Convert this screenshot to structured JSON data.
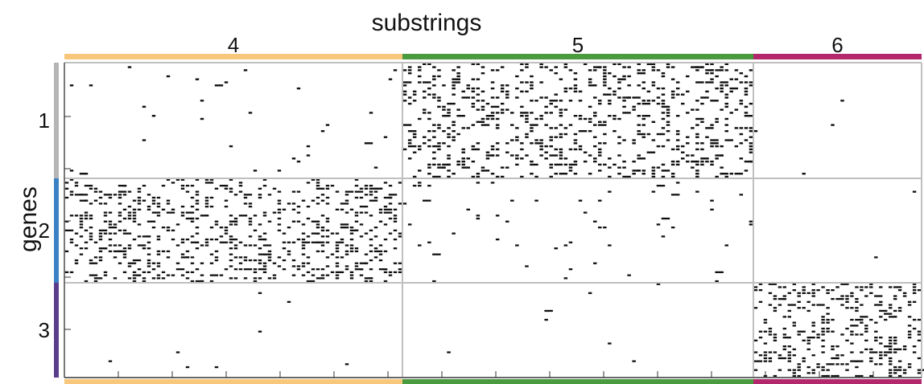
{
  "chart_data": {
    "type": "heatmap",
    "title": "",
    "xlabel": "substrings",
    "ylabel": "genes",
    "grid": true,
    "colors": {
      "col_group_4": "#f9c77b",
      "col_group_5": "#4a9a3f",
      "col_group_6": "#b3276d",
      "row_group_1": "#b5b5b5",
      "row_group_2": "#3b82c4",
      "row_group_3": "#5a3d8a",
      "marks": "#111111",
      "grid": "#bfbfbf"
    },
    "column_groups": [
      {
        "label": "4",
        "color": "#f9c77b",
        "n_columns": 70
      },
      {
        "label": "5",
        "color": "#4a9a3f",
        "n_columns": 72
      },
      {
        "label": "6",
        "color": "#b3276d",
        "n_columns": 35
      }
    ],
    "row_groups": [
      {
        "label": "1",
        "color": "#b5b5b5",
        "n_rows": 38
      },
      {
        "label": "2",
        "color": "#3b82c4",
        "n_rows": 35
      },
      {
        "label": "3",
        "color": "#5a3d8a",
        "n_rows": 32
      }
    ],
    "block_densities": [
      [
        0.012,
        0.24,
        0.003
      ],
      [
        0.25,
        0.022,
        0.002
      ],
      [
        0.001,
        0.001,
        0.26
      ]
    ]
  }
}
